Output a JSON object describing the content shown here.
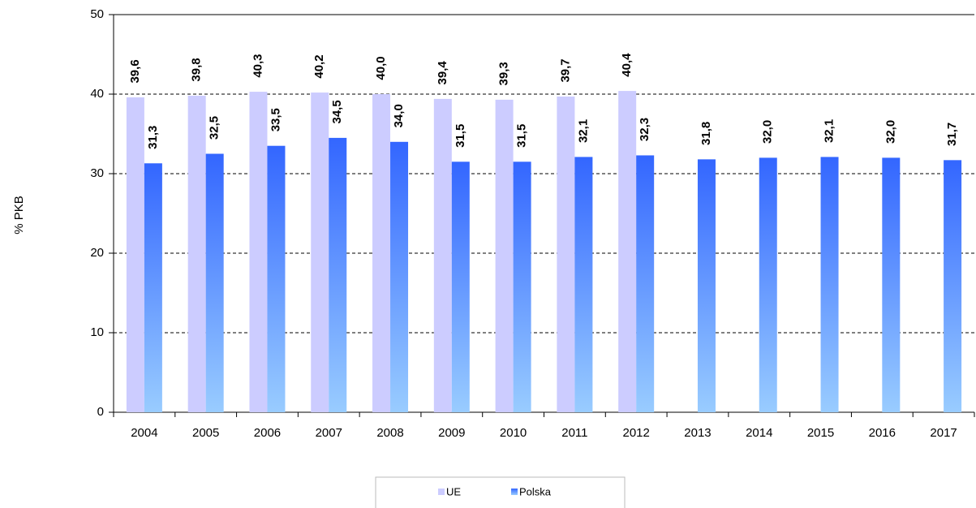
{
  "chart_data": {
    "type": "bar",
    "y_label": "% PKB",
    "categories": [
      "2004",
      "2005",
      "2006",
      "2007",
      "2008",
      "2009",
      "2010",
      "2011",
      "2012",
      "2013",
      "2014",
      "2015",
      "2016",
      "2017"
    ],
    "series": [
      {
        "name": "UE",
        "color": "#ccccff",
        "values": [
          39.6,
          39.8,
          40.3,
          40.2,
          40.0,
          39.4,
          39.3,
          39.7,
          40.4,
          null,
          null,
          null,
          null,
          null
        ],
        "value_labels": [
          "39,6",
          "39,8",
          "40,3",
          "40,2",
          "40,0",
          "39,4",
          "39,3",
          "39,7",
          "40,4",
          null,
          null,
          null,
          null,
          null
        ]
      },
      {
        "name": "Polska",
        "color": "#3366ff",
        "gradient_end": "#99ccff",
        "values": [
          31.3,
          32.5,
          33.5,
          34.5,
          34.0,
          31.5,
          31.5,
          32.1,
          32.3,
          31.8,
          32.0,
          32.1,
          32.0,
          31.7
        ],
        "value_labels": [
          "31,3",
          "32,5",
          "33,5",
          "34,5",
          "34,0",
          "31,5",
          "31,5",
          "32,1",
          "32,3",
          "31,8",
          "32,0",
          "32,1",
          "32,0",
          "31,7"
        ]
      }
    ],
    "ylim": [
      0,
      50
    ],
    "yticks": [
      0,
      10,
      20,
      30,
      40,
      50
    ],
    "grid": true
  }
}
